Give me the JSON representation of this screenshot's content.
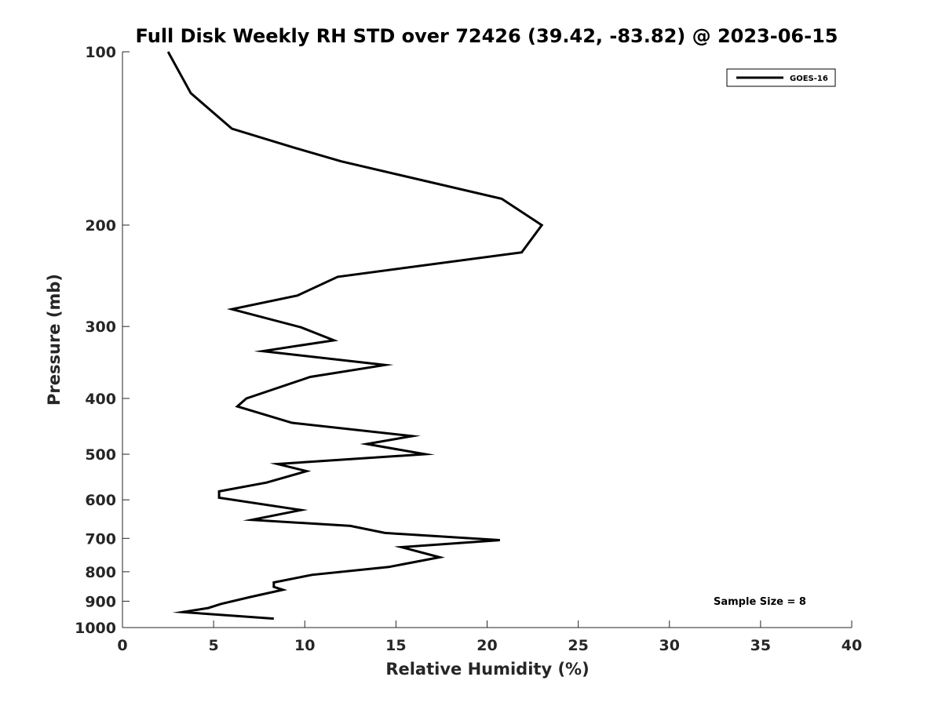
{
  "chart_data": {
    "type": "line",
    "title": "Full Disk Weekly RH STD over 72426 (39.42, -83.82) @ 2023-06-15",
    "xlabel": "Relative Humidity (%)",
    "ylabel": "Pressure (mb)",
    "xlim": [
      0,
      40
    ],
    "ylim": [
      100,
      1000
    ],
    "y_scale": "log",
    "y_reversed": true,
    "x_ticks": [
      0,
      5,
      10,
      15,
      20,
      25,
      30,
      35,
      40
    ],
    "y_ticks": [
      100,
      200,
      300,
      400,
      500,
      600,
      700,
      800,
      900,
      1000
    ],
    "grid": false,
    "legend_position": "top-right",
    "annotation": "Sample Size = 8",
    "series": [
      {
        "name": "GOES-16",
        "color": "#000000",
        "points": [
          [
            2.5,
            100
          ],
          [
            3.75,
            118
          ],
          [
            6.0,
            136
          ],
          [
            9.5,
            147
          ],
          [
            12.0,
            155
          ],
          [
            20.8,
            180
          ],
          [
            23.0,
            200
          ],
          [
            21.9,
            223
          ],
          [
            11.8,
            246
          ],
          [
            9.6,
            265
          ],
          [
            6.0,
            280
          ],
          [
            9.8,
            301
          ],
          [
            11.6,
            317
          ],
          [
            7.7,
            331
          ],
          [
            14.4,
            350
          ],
          [
            10.3,
            367
          ],
          [
            6.8,
            400
          ],
          [
            6.3,
            413
          ],
          [
            9.3,
            441
          ],
          [
            15.9,
            465
          ],
          [
            13.4,
            480
          ],
          [
            16.6,
            500
          ],
          [
            8.5,
            520
          ],
          [
            10.1,
            535
          ],
          [
            7.9,
            560
          ],
          [
            5.3,
            580
          ],
          [
            5.3,
            595
          ],
          [
            9.8,
            625
          ],
          [
            7.1,
            650
          ],
          [
            12.5,
            666
          ],
          [
            14.4,
            685
          ],
          [
            20.7,
            705
          ],
          [
            15.3,
            725
          ],
          [
            17.4,
            755
          ],
          [
            14.6,
            785
          ],
          [
            10.4,
            810
          ],
          [
            8.3,
            835
          ],
          [
            8.3,
            850
          ],
          [
            8.8,
            860
          ],
          [
            7.0,
            885
          ],
          [
            5.4,
            910
          ],
          [
            4.7,
            925
          ],
          [
            3.3,
            940
          ],
          [
            8.3,
            965
          ]
        ]
      }
    ]
  }
}
